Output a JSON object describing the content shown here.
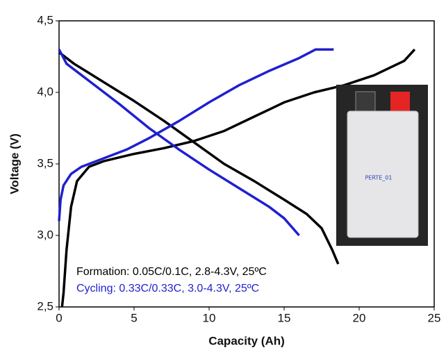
{
  "chart_data": {
    "type": "line",
    "x_label": "Capacity (Ah)",
    "y_label": "Voltage (V)",
    "xlim": [
      0,
      25
    ],
    "xticks": [
      0,
      5,
      10,
      15,
      20,
      25
    ],
    "ylim": [
      2.5,
      4.5
    ],
    "yticks": [
      {
        "value": 2.5,
        "label": "2,5"
      },
      {
        "value": 3.0,
        "label": "3,0"
      },
      {
        "value": 3.5,
        "label": "3,5"
      },
      {
        "value": 4.0,
        "label": "4,0"
      },
      {
        "value": 4.5,
        "label": "4,5"
      }
    ],
    "series": [
      {
        "name": "Formation: 0.05C/0.1C, 2.8-4.3V, 25ºC",
        "color": "#000000",
        "x": [
          0.2,
          0.3,
          0.5,
          0.8,
          1.2,
          2,
          3,
          5,
          7,
          9,
          11,
          13,
          15,
          17,
          19,
          21,
          23,
          23.7,
          null,
          0,
          1,
          3,
          5,
          7,
          9,
          11,
          13,
          15,
          16.5,
          17.5,
          18.2,
          18.6
        ],
        "values": [
          2.5,
          2.6,
          2.9,
          3.2,
          3.38,
          3.48,
          3.52,
          3.57,
          3.61,
          3.66,
          3.73,
          3.83,
          3.93,
          4.0,
          4.05,
          4.12,
          4.22,
          4.3,
          null,
          4.28,
          4.2,
          4.07,
          3.94,
          3.8,
          3.65,
          3.5,
          3.38,
          3.25,
          3.15,
          3.05,
          2.9,
          2.8
        ]
      },
      {
        "name": "Cycling: 0.33C/0.33C, 3.0-4.3V, 25ºC",
        "color": "#1f1fd0",
        "x": [
          0,
          0.1,
          0.3,
          0.8,
          1.5,
          3,
          4.5,
          6,
          8,
          10,
          12,
          14,
          16,
          17.1,
          18.3,
          null,
          0,
          0.5,
          2,
          4,
          6,
          8,
          10,
          12,
          14,
          15,
          16
        ],
        "values": [
          3.1,
          3.25,
          3.35,
          3.43,
          3.48,
          3.54,
          3.6,
          3.68,
          3.8,
          3.93,
          4.05,
          4.15,
          4.24,
          4.3,
          4.3,
          null,
          4.3,
          4.2,
          4.08,
          3.92,
          3.75,
          3.6,
          3.46,
          3.33,
          3.2,
          3.12,
          3.0
        ]
      }
    ]
  },
  "inset": {
    "label": "PERTE_01"
  }
}
